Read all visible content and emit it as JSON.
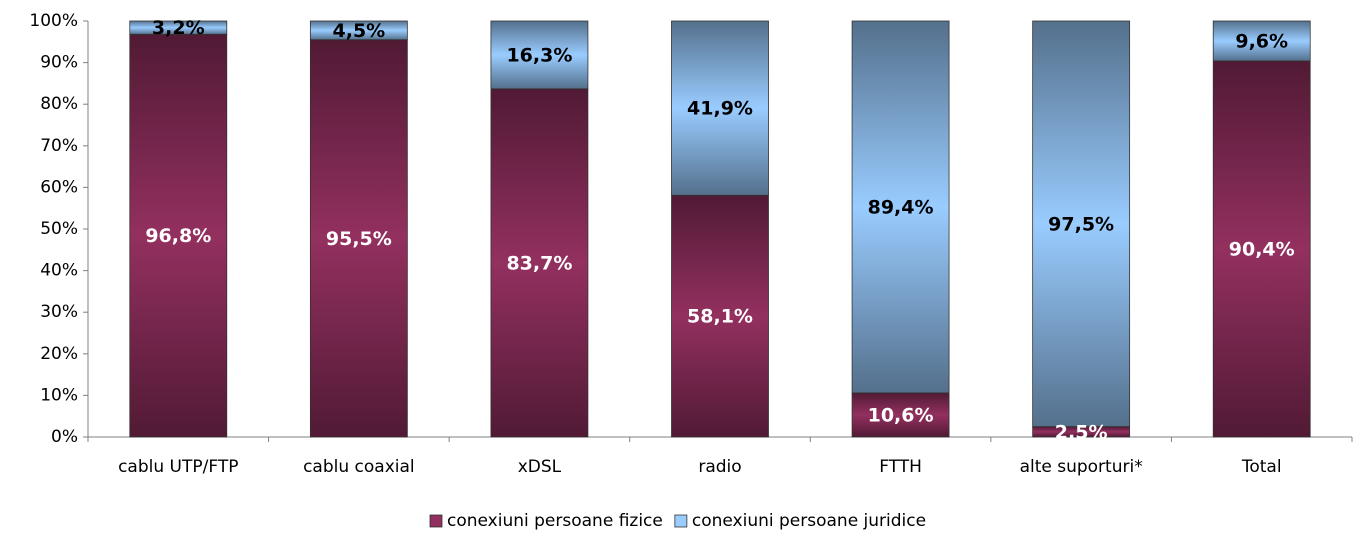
{
  "chart_data": {
    "type": "stacked_bar",
    "categories": [
      "cablu UTP/FTP",
      "cablu coaxial",
      "xDSL",
      "radio",
      "FTTH",
      "alte suporturi*",
      "Total"
    ],
    "series": [
      {
        "name": "conexiuni persoane fizice",
        "color": "#93305f",
        "values": [
          96.8,
          95.5,
          83.7,
          58.1,
          10.6,
          2.5,
          90.4
        ],
        "value_labels": [
          "96,8%",
          "95,5%",
          "83,7%",
          "58,1%",
          "10,6%",
          "2,5%",
          "90,4%"
        ]
      },
      {
        "name": "conexiuni persoane juridice",
        "color": "#99ccff",
        "values": [
          3.2,
          4.5,
          16.3,
          41.9,
          89.4,
          97.5,
          9.6
        ],
        "value_labels": [
          "3,2%",
          "4,5%",
          "16,3%",
          "41,9%",
          "89,4%",
          "97,5%",
          "9,6%"
        ]
      }
    ],
    "ylim": [
      0,
      100
    ],
    "yticks": [
      {
        "value": 0,
        "label": "0%"
      },
      {
        "value": 10,
        "label": "10%"
      },
      {
        "value": 20,
        "label": "20%"
      },
      {
        "value": 30,
        "label": "30%"
      },
      {
        "value": 40,
        "label": "40%"
      },
      {
        "value": 50,
        "label": "50%"
      },
      {
        "value": 60,
        "label": "60%"
      },
      {
        "value": 70,
        "label": "70%"
      },
      {
        "value": 80,
        "label": "80%"
      },
      {
        "value": 90,
        "label": "90%"
      },
      {
        "value": 100,
        "label": "100%"
      }
    ],
    "legend": "bottom"
  }
}
